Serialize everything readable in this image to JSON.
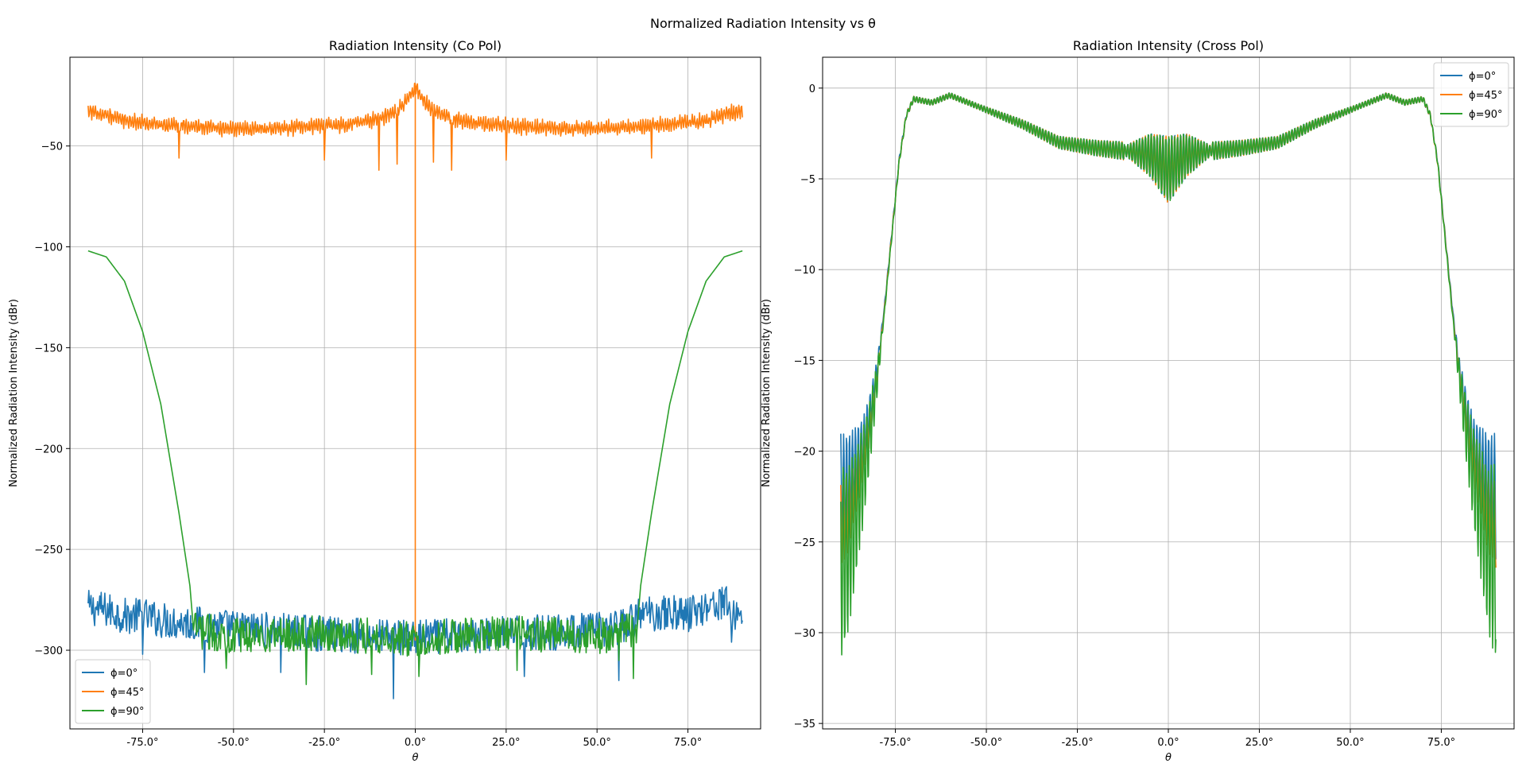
{
  "figure": {
    "suptitle": "Normalized Radiation Intensity vs θ"
  },
  "chart_data": [
    {
      "type": "line",
      "title": "Radiation Intensity (Co Pol)",
      "xlabel": "θ",
      "ylabel": "Normalized Radiation Intensity (dBr)",
      "xlim": [
        -95,
        95
      ],
      "ylim": [
        -339,
        -6
      ],
      "xticks": [
        -75,
        -50,
        -25,
        0,
        25,
        50,
        75
      ],
      "xtick_labels": [
        "-75.0°",
        "-50.0°",
        "-25.0°",
        "0.0°",
        "25.0°",
        "50.0°",
        "75.0°"
      ],
      "yticks": [
        -50,
        -100,
        -150,
        -200,
        -250,
        -300
      ],
      "ytick_labels": [
        "−50",
        "−100",
        "−150",
        "−200",
        "−250",
        "−300"
      ],
      "grid": true,
      "legend": "lower-left",
      "series": [
        {
          "name": "ϕ=0°",
          "color": "#1f77b4",
          "profile": {
            "x": [
              -90,
              -85,
              -80,
              -75,
              -70,
              -60,
              -50,
              -40,
              -25,
              -10,
              0,
              10,
              25,
              40,
              50,
              58,
              62,
              70,
              75,
              80,
              85,
              88,
              90
            ],
            "y": [
              -279,
              -280,
              -283,
              -283,
              -285,
              -287,
              -289,
              -290,
              -292,
              -293,
              -294,
              -293,
              -292,
              -291,
              -290,
              -288,
              -282,
              -281,
              -282,
              -278,
              -276,
              -283,
              -281
            ]
          },
          "noise_amplitude": 9,
          "dips": [
            [
              -75,
              -302
            ],
            [
              -58,
              -311
            ],
            [
              -37,
              -311
            ],
            [
              -6,
              -324
            ],
            [
              30,
              -313
            ],
            [
              56,
              -315
            ],
            [
              87,
              -296
            ]
          ]
        },
        {
          "name": "ϕ=45°",
          "color": "#ff7f0e",
          "profile": {
            "x": [
              -90,
              -85,
              -80,
              -70,
              -60,
              -50,
              -40,
              -30,
              -20,
              -10,
              -5,
              -2,
              0,
              2,
              5,
              10,
              20,
              30,
              40,
              50,
              60,
              70,
              80,
              85,
              90
            ],
            "y": [
              -28,
              -30,
              -33,
              -35,
              -36,
              -37,
              -37,
              -36,
              -35,
              -32,
              -28,
              -22,
              -16,
              -22,
              -28,
              -32,
              -35,
              -36,
              -37,
              -37,
              -36,
              -35,
              -33,
              -30,
              -28
            ]
          },
          "noise_amplitude": 6,
          "dips": [
            [
              -65,
              -56
            ],
            [
              -25,
              -57
            ],
            [
              -10,
              -62
            ],
            [
              -5,
              -59
            ],
            [
              5,
              -58
            ],
            [
              10,
              -62
            ],
            [
              25,
              -57
            ],
            [
              65,
              -56
            ]
          ],
          "spike": [
            0,
            -295
          ]
        },
        {
          "name": "ϕ=90°",
          "color": "#2ca02c",
          "profile": {
            "x": [
              -90,
              -85,
              -80,
              -75,
              -70,
              -65,
              -62,
              -61,
              -50,
              -40,
              -25,
              -10,
              0,
              10,
              25,
              40,
              50,
              61,
              62,
              65,
              70,
              75,
              80,
              85,
              90
            ],
            "y": [
              -102,
              -105,
              -117,
              -142,
              -178,
              -232,
              -268,
              -290,
              -293,
              -292,
              -292,
              -293,
              -295,
              -293,
              -292,
              -292,
              -293,
              -290,
              -268,
              -232,
              -178,
              -142,
              -117,
              -105,
              -102
            ]
          },
          "noise_amplitude": 9,
          "dips": [
            [
              -52,
              -309
            ],
            [
              -30,
              -317
            ],
            [
              -12,
              -312
            ],
            [
              1,
              -313
            ],
            [
              28,
              -310
            ],
            [
              56,
              -305
            ],
            [
              60,
              -314
            ]
          ]
        }
      ]
    },
    {
      "type": "line",
      "title": "Radiation Intensity (Cross Pol)",
      "xlabel": "θ",
      "ylabel": "Normalized Radiation Intensity (dBr)",
      "xlim": [
        -95,
        95
      ],
      "ylim": [
        -35.3,
        1.7
      ],
      "xticks": [
        -75,
        -50,
        -25,
        0,
        25,
        50,
        75
      ],
      "xtick_labels": [
        "-75.0°",
        "-50.0°",
        "-25.0°",
        "0.0°",
        "25.0°",
        "50.0°",
        "75.0°"
      ],
      "yticks": [
        0,
        -5,
        -10,
        -15,
        -20,
        -25,
        -30,
        -35
      ],
      "ytick_labels": [
        "0",
        "−5",
        "−10",
        "−15",
        "−20",
        "−25",
        "−30",
        "−35"
      ],
      "grid": true,
      "legend": "top-right",
      "series": [
        {
          "name": "ϕ=0°",
          "color": "#1f77b4",
          "profile": {
            "x": [
              -90,
              -88,
              -86,
              -84,
              -82,
              -80,
              -78,
              -76,
              -74,
              -72,
              -70,
              -65,
              -60,
              -50,
              -40,
              -30,
              -20,
              -10,
              -5,
              0,
              5,
              10,
              20,
              30,
              40,
              50,
              60,
              65,
              70,
              72,
              74,
              76,
              78,
              80,
              82,
              84,
              86,
              88,
              90
            ],
            "y": [
              -22.5,
              -22.0,
              -21.0,
              -20.0,
              -18.0,
              -15.5,
              -12.0,
              -8.0,
              -4.0,
              -1.5,
              -0.6,
              -0.8,
              -0.4,
              -1.2,
              -2.0,
              -3.0,
              -3.3,
              -3.5,
              -3.7,
              -4.5,
              -3.7,
              -3.5,
              -3.3,
              -3.0,
              -2.0,
              -1.2,
              -0.4,
              -0.8,
              -0.6,
              -1.5,
              -4.0,
              -8.0,
              -12.0,
              -15.5,
              -18.0,
              -20.0,
              -21.0,
              -22.0,
              -22.5
            ]
          },
          "oscillation_amplitude": 3.5
        },
        {
          "name": "ϕ=45°",
          "color": "#ff7f0e",
          "profile": {
            "x": [
              -90,
              -88,
              -86,
              -84,
              -82,
              -80,
              -78,
              -76,
              -74,
              -72,
              -70,
              -65,
              -60,
              -50,
              -40,
              -30,
              -20,
              -10,
              -5,
              0,
              5,
              10,
              20,
              30,
              40,
              50,
              60,
              65,
              70,
              72,
              74,
              76,
              78,
              80,
              82,
              84,
              86,
              88,
              90
            ],
            "y": [
              -24.0,
              -23.5,
              -22.0,
              -20.5,
              -18.5,
              -15.8,
              -12.2,
              -8.1,
              -4.1,
              -1.5,
              -0.6,
              -0.8,
              -0.4,
              -1.2,
              -2.0,
              -3.0,
              -3.3,
              -3.5,
              -3.7,
              -4.5,
              -3.7,
              -3.5,
              -3.3,
              -3.0,
              -2.0,
              -1.2,
              -0.4,
              -0.8,
              -0.6,
              -1.5,
              -4.1,
              -8.1,
              -12.2,
              -15.8,
              -18.5,
              -20.5,
              -22.0,
              -23.5,
              -24.0
            ]
          },
          "oscillation_amplitude": 2.5
        },
        {
          "name": "ϕ=90°",
          "color": "#2ca02c",
          "profile": {
            "x": [
              -90,
              -88,
              -86,
              -84,
              -82,
              -80,
              -78,
              -76,
              -74,
              -72,
              -70,
              -65,
              -60,
              -50,
              -40,
              -30,
              -20,
              -10,
              -5,
              0,
              5,
              10,
              20,
              30,
              40,
              50,
              60,
              65,
              70,
              72,
              74,
              76,
              78,
              80,
              82,
              84,
              86,
              88,
              90
            ],
            "y": [
              -26.0,
              -25.5,
              -23.5,
              -21.5,
              -19.0,
              -16.0,
              -12.3,
              -8.2,
              -4.1,
              -1.5,
              -0.6,
              -0.8,
              -0.4,
              -1.2,
              -2.0,
              -3.0,
              -3.3,
              -3.5,
              -3.7,
              -4.5,
              -3.7,
              -3.5,
              -3.3,
              -3.0,
              -2.0,
              -1.2,
              -0.4,
              -0.8,
              -0.6,
              -1.5,
              -4.1,
              -8.2,
              -12.3,
              -16.0,
              -19.0,
              -21.5,
              -23.5,
              -25.5,
              -26.0
            ]
          },
          "oscillation_amplitude": 5.5
        }
      ]
    }
  ]
}
